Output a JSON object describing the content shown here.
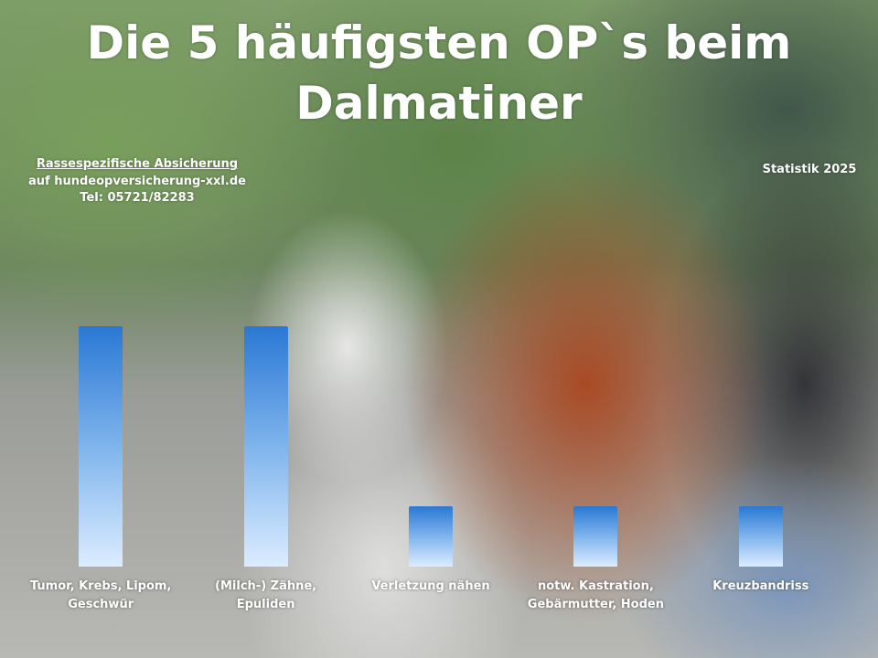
{
  "chart_data": {
    "type": "bar",
    "title": "Die 5 häufigsten OP`s beim Dalmatiner",
    "annotations": [
      "Rassespezifische  Absicherung",
      "auf hundeopversicherung-xxl.de",
      "Tel: 05721/82283",
      "Statistik 2025"
    ],
    "categories": [
      "Tumor, Krebs, Lipom, Geschwür",
      "(Milch-) Zähne, Epuliden",
      "Verletzung nähen",
      "notw. Kastration, Gebärmutter, Hoden",
      "Kreuzbandriss"
    ],
    "values": [
      4,
      4,
      1,
      1,
      1
    ],
    "ylim": [
      0,
      4
    ]
  }
}
